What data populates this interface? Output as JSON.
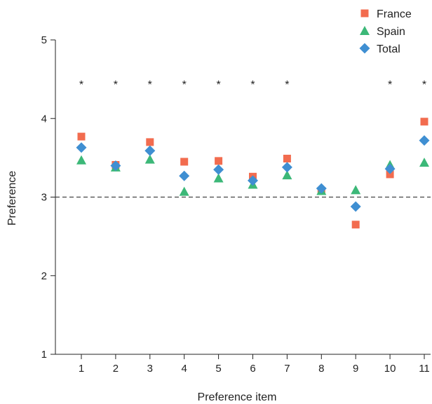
{
  "chart_data": {
    "type": "scatter",
    "title": "",
    "xlabel": "Preference item",
    "ylabel": "Preference",
    "categories": [
      "1",
      "2",
      "3",
      "4",
      "5",
      "6",
      "7",
      "8",
      "9",
      "10",
      "11"
    ],
    "ylim": [
      1,
      5
    ],
    "yticks": [
      "1",
      "2",
      "3",
      "4",
      "5"
    ],
    "reference_line": 3,
    "reference_line_style": "dashed",
    "grid": false,
    "legend_position": "top-right",
    "significance_marker": "*",
    "significant_items": [
      "1",
      "2",
      "3",
      "4",
      "5",
      "6",
      "7",
      "10",
      "11"
    ],
    "series": [
      {
        "name": "France",
        "marker": "square",
        "color": "#f26c4f",
        "values": [
          3.77,
          3.41,
          3.7,
          3.45,
          3.46,
          3.26,
          3.49,
          3.08,
          2.65,
          3.29,
          3.96
        ]
      },
      {
        "name": "Spain",
        "marker": "triangle",
        "color": "#3cb878",
        "values": [
          3.47,
          3.38,
          3.48,
          3.07,
          3.24,
          3.16,
          3.28,
          3.08,
          3.09,
          3.41,
          3.44
        ]
      },
      {
        "name": "Total",
        "marker": "diamond",
        "color": "#3f8fd2",
        "values": [
          3.63,
          3.4,
          3.59,
          3.27,
          3.35,
          3.21,
          3.38,
          3.11,
          2.88,
          3.36,
          3.72
        ]
      }
    ]
  }
}
